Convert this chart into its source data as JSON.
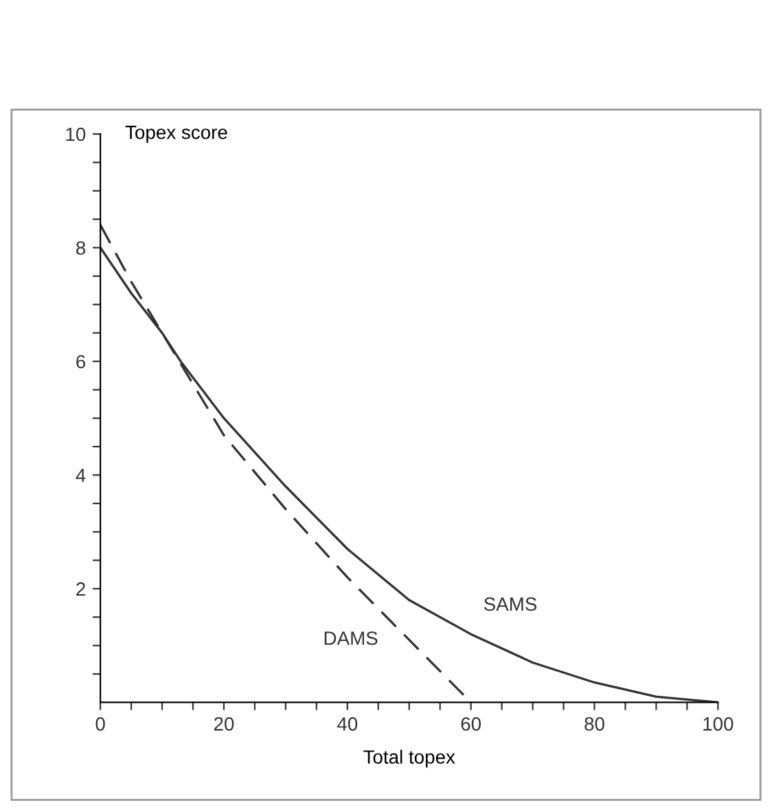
{
  "chart_data": {
    "type": "line",
    "xlabel": "Total topex",
    "ylabel": "Topex score",
    "xlim": [
      0,
      100
    ],
    "ylim": [
      0,
      10
    ],
    "xticks": [
      0,
      {
        "value": 5,
        "label": null
      },
      {
        "value": 10,
        "label": null
      },
      {
        "value": 15,
        "label": null
      },
      20,
      {
        "value": 25,
        "label": null
      },
      {
        "value": 30,
        "label": null
      },
      {
        "value": 35,
        "label": null
      },
      40,
      {
        "value": 45,
        "label": null
      },
      {
        "value": 50,
        "label": null
      },
      {
        "value": 55,
        "label": null
      },
      60,
      {
        "value": 65,
        "label": null
      },
      {
        "value": 70,
        "label": null
      },
      {
        "value": 75,
        "label": null
      },
      80,
      {
        "value": 85,
        "label": null
      },
      {
        "value": 90,
        "label": null
      },
      {
        "value": 95,
        "label": null
      },
      100
    ],
    "yticks": [
      {
        "value": 0.5,
        "label": null
      },
      {
        "value": 1,
        "label": null
      },
      {
        "value": 1.5,
        "label": null
      },
      2,
      {
        "value": 2.5,
        "label": null
      },
      {
        "value": 3,
        "label": null
      },
      {
        "value": 3.5,
        "label": null
      },
      4,
      {
        "value": 4.5,
        "label": null
      },
      {
        "value": 5,
        "label": null
      },
      {
        "value": 5.5,
        "label": null
      },
      6,
      {
        "value": 6.5,
        "label": null
      },
      {
        "value": 7,
        "label": null
      },
      {
        "value": 7.5,
        "label": null
      },
      8,
      {
        "value": 8.5,
        "label": null
      },
      {
        "value": 9,
        "label": null
      },
      {
        "value": 9.5,
        "label": null
      },
      10
    ],
    "grid": false,
    "legend": false,
    "marker": "none",
    "series": [
      {
        "name": "DAMS",
        "color": "#333333",
        "line_style": "dashed",
        "x": [
          0,
          5,
          10,
          15,
          20,
          30,
          40,
          50,
          60
        ],
        "values": [
          8.4,
          7.4,
          6.5,
          5.6,
          4.7,
          3.4,
          2.2,
          1.1,
          0
        ]
      },
      {
        "name": "SAMS",
        "color": "#333333",
        "line_style": "solid",
        "x": [
          0,
          5,
          10,
          13,
          20,
          30,
          40,
          50,
          60,
          70,
          80,
          90,
          100
        ],
        "values": [
          8.0,
          7.2,
          6.5,
          6.0,
          5.0,
          3.8,
          2.7,
          1.8,
          1.2,
          0.7,
          0.35,
          0.1,
          0
        ]
      }
    ]
  }
}
